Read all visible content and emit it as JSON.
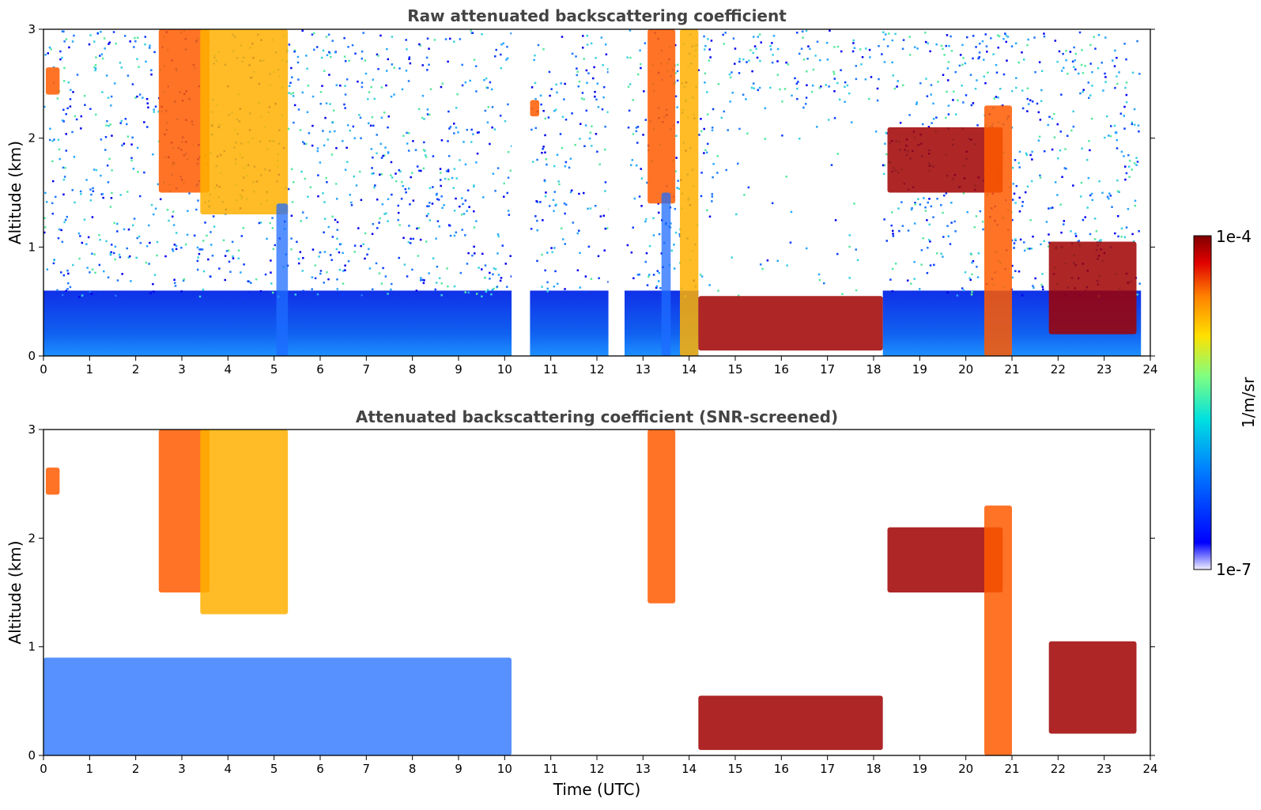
{
  "chart_data": [
    {
      "type": "heatmap",
      "title": "Raw attenuated backscattering coefficient",
      "xlabel": "",
      "ylabel": "Altitude (km)",
      "xlim": [
        0,
        24
      ],
      "ylim": [
        0,
        3
      ],
      "x_ticks": [
        "0",
        "1",
        "2",
        "3",
        "4",
        "5",
        "6",
        "7",
        "8",
        "9",
        "10",
        "11",
        "12",
        "13",
        "14",
        "15",
        "16",
        "17",
        "18",
        "19",
        "20",
        "21",
        "22",
        "23",
        "24"
      ],
      "y_ticks": [
        "0",
        "1",
        "2",
        "3"
      ],
      "data_gaps_hours": [
        [
          10.15,
          10.55
        ],
        [
          12.25,
          12.6
        ],
        [
          23.8,
          24
        ]
      ],
      "features": [
        {
          "name": "elevated layer",
          "x_range": [
            0.05,
            0.35
          ],
          "y_range": [
            2.4,
            2.65
          ],
          "intensity": "high"
        },
        {
          "name": "elevated layer",
          "x_range": [
            10.55,
            10.75
          ],
          "y_range": [
            2.2,
            2.35
          ],
          "intensity": "high"
        },
        {
          "name": "precipitation streak",
          "x_range": [
            2.5,
            3.6
          ],
          "y_range": [
            1.5,
            3.0
          ],
          "intensity": "high"
        },
        {
          "name": "precipitation streak",
          "x_range": [
            3.4,
            5.3
          ],
          "y_range": [
            1.3,
            3.0
          ],
          "intensity": "medium"
        },
        {
          "name": "fall streak to surface",
          "x_range": [
            5.05,
            5.3
          ],
          "y_range": [
            0,
            1.4
          ],
          "intensity": "low"
        },
        {
          "name": "precipitation streak",
          "x_range": [
            13.1,
            13.7
          ],
          "y_range": [
            1.4,
            3.0
          ],
          "intensity": "high"
        },
        {
          "name": "fall streak to surface",
          "x_range": [
            13.4,
            13.6
          ],
          "y_range": [
            0,
            1.5
          ],
          "intensity": "low"
        },
        {
          "name": "precipitation streak",
          "x_range": [
            13.8,
            14.2
          ],
          "y_range": [
            0,
            3.0
          ],
          "intensity": "medium"
        },
        {
          "name": "boundary layer top",
          "x_range": [
            14.2,
            18.2
          ],
          "y_range": [
            0.05,
            0.55
          ],
          "intensity": "very high"
        },
        {
          "name": "cloud layer",
          "x_range": [
            18.3,
            20.8
          ],
          "y_range": [
            1.5,
            2.1
          ],
          "intensity": "very high"
        },
        {
          "name": "precipitation column",
          "x_range": [
            20.4,
            21.0
          ],
          "y_range": [
            0,
            2.3
          ],
          "intensity": "high"
        },
        {
          "name": "cloud layer",
          "x_range": [
            21.8,
            23.7
          ],
          "y_range": [
            0.2,
            1.05
          ],
          "intensity": "very high"
        }
      ]
    },
    {
      "type": "heatmap",
      "title": "Attenuated backscattering coefficient (SNR-screened)",
      "xlabel": "Time (UTC)",
      "ylabel": "Altitude (km)",
      "xlim": [
        0,
        24
      ],
      "ylim": [
        0,
        3
      ],
      "x_ticks": [
        "0",
        "1",
        "2",
        "3",
        "4",
        "5",
        "6",
        "7",
        "8",
        "9",
        "10",
        "11",
        "12",
        "13",
        "14",
        "15",
        "16",
        "17",
        "18",
        "19",
        "20",
        "21",
        "22",
        "23",
        "24"
      ],
      "y_ticks": [
        "0",
        "1",
        "2",
        "3"
      ],
      "data_gaps_hours": [
        [
          10.15,
          10.55
        ],
        [
          12.25,
          12.6
        ],
        [
          23.8,
          24
        ]
      ],
      "features": [
        {
          "name": "boundary layer",
          "x_range": [
            0,
            10.15
          ],
          "y_range": [
            0,
            0.9
          ],
          "intensity": "low"
        },
        {
          "name": "elevated layer",
          "x_range": [
            0.05,
            0.35
          ],
          "y_range": [
            2.4,
            2.65
          ],
          "intensity": "high"
        },
        {
          "name": "precipitation streak",
          "x_range": [
            2.5,
            3.6
          ],
          "y_range": [
            1.5,
            3.0
          ],
          "intensity": "high"
        },
        {
          "name": "precipitation streak",
          "x_range": [
            3.4,
            5.3
          ],
          "y_range": [
            1.3,
            3.0
          ],
          "intensity": "medium"
        },
        {
          "name": "precipitation streak",
          "x_range": [
            13.1,
            13.7
          ],
          "y_range": [
            1.4,
            3.0
          ],
          "intensity": "high"
        },
        {
          "name": "boundary layer top",
          "x_range": [
            14.2,
            18.2
          ],
          "y_range": [
            0.05,
            0.55
          ],
          "intensity": "very high"
        },
        {
          "name": "cloud layer",
          "x_range": [
            18.3,
            20.8
          ],
          "y_range": [
            1.5,
            2.1
          ],
          "intensity": "very high"
        },
        {
          "name": "precipitation column",
          "x_range": [
            20.4,
            21.0
          ],
          "y_range": [
            0,
            2.3
          ],
          "intensity": "high"
        },
        {
          "name": "cloud layer",
          "x_range": [
            21.8,
            23.7
          ],
          "y_range": [
            0.2,
            1.05
          ],
          "intensity": "very high"
        }
      ]
    }
  ],
  "colorbar": {
    "label": "1/m/sr",
    "max_label": "1e-4",
    "min_label": "1e-7",
    "colormap": "jet",
    "colors": [
      "#f0f0ff",
      "#0000ff",
      "#0080ff",
      "#00e0e0",
      "#80ff80",
      "#ffe000",
      "#ff8000",
      "#e00000",
      "#800000"
    ]
  }
}
